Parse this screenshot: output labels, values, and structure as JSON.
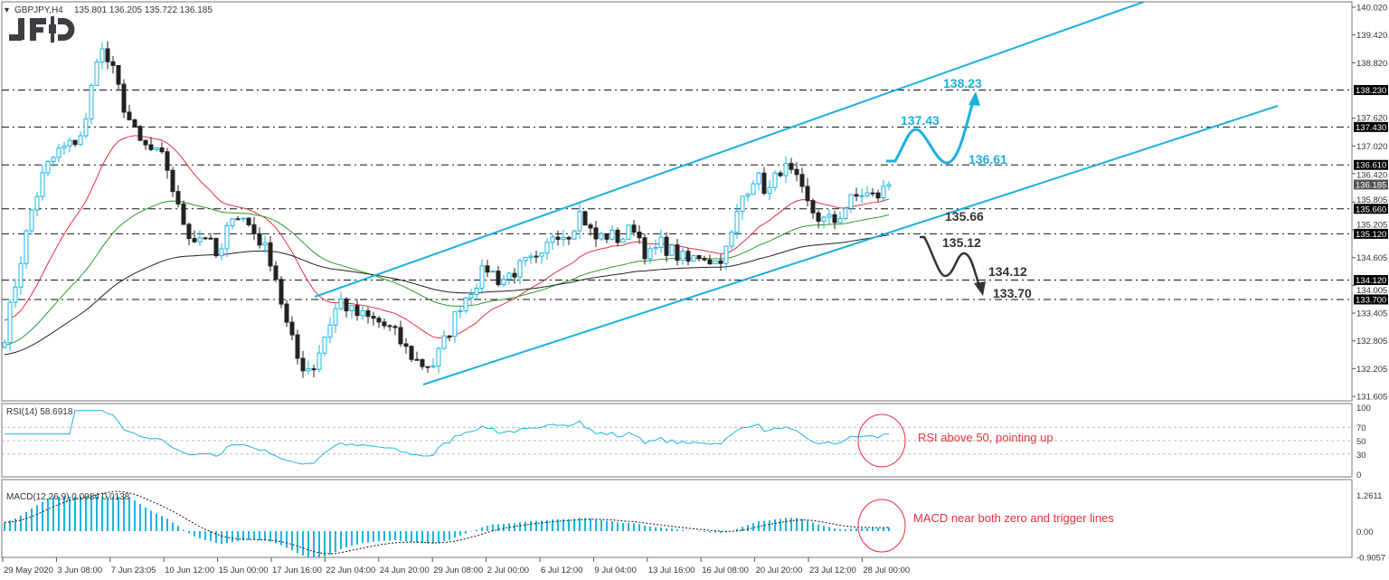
{
  "header": {
    "symbol": "GBPJPY,H4",
    "ohlc": "135.801 136.205 135.722 136.185",
    "logo": "JFD"
  },
  "colors": {
    "bull": "#1bb5e0",
    "bear": "#222222",
    "channel": "#1bb0e0",
    "ma_fast": "#e8303a",
    "ma_mid": "#2e9a2e",
    "ma_slow": "#222222",
    "note": "#e8303a",
    "level_line": "#111111"
  },
  "chart_data": [
    {
      "type": "candlestick",
      "panel": "price",
      "ylim": [
        131.605,
        140.02
      ],
      "y_ticks": [
        "140.020",
        "139.420",
        "138.820",
        "137.620",
        "137.020",
        "136.420",
        "135.805",
        "135.205",
        "134.605",
        "134.005",
        "133.405",
        "132.805",
        "132.205",
        "131.605"
      ],
      "x_ticks": [
        "29 May 2020",
        "3 Jun 08:00",
        "7 Jun 23:05",
        "10 Jun 12:00",
        "15 Jun 00:00",
        "17 Jun 16:00",
        "22 Jun 04:00",
        "24 Jun 20:00",
        "29 Jun 08:00",
        "2 Jul 00:00",
        "6 Jul 12:00",
        "9 Jul 04:00",
        "13 Jul 16:00",
        "16 Jul 08:00",
        "20 Jul 20:00",
        "23 Jul 12:00",
        "28 Jul 00:00"
      ],
      "approx_close_path": [
        132.94,
        134.3,
        135.6,
        136.5,
        136.9,
        137.05,
        137.4,
        139.2,
        138.7,
        137.8,
        137.1,
        136.9,
        136.7,
        135.6,
        135.0,
        135.1,
        134.5,
        135.6,
        135.4,
        135.0,
        134.5,
        133.2,
        132.3,
        132.2,
        133.0,
        133.7,
        133.4,
        133.3,
        133.2,
        133.0,
        132.6,
        132.3,
        132.3,
        132.9,
        133.6,
        134.0,
        134.4,
        134.1,
        134.3,
        134.5,
        134.5,
        135.2,
        135.1,
        135.6,
        135.0,
        135.1,
        135.0,
        135.3,
        134.6,
        134.9,
        134.7,
        134.5,
        134.7,
        134.5,
        134.8,
        135.9,
        136.4,
        136.0,
        136.6,
        136.3,
        135.7,
        135.4,
        135.4,
        135.8,
        136.0,
        135.9,
        136.185
      ],
      "current_price": "136.185",
      "levels": [
        "138.230",
        "137.430",
        "136.610",
        "135.660",
        "135.120",
        "134.120",
        "133.700"
      ],
      "annotations": {
        "bull_targets": [
          "138.23",
          "137.43",
          "136.61"
        ],
        "bear_targets": [
          "135.66",
          "135.12",
          "134.12",
          "133.70"
        ]
      }
    },
    {
      "type": "line",
      "panel": "rsi",
      "label": "RSI(14) 58.6918",
      "ylim": [
        0,
        100
      ],
      "y_ticks": [
        "100",
        "70",
        "50",
        "30",
        "0"
      ],
      "note": "RSI above 50, pointing up"
    },
    {
      "type": "bar",
      "panel": "macd",
      "label": "MACD(12,26,9) 0.0984 0.0138",
      "ylim": [
        -0.9057,
        1.2611
      ],
      "y_ticks": [
        "1.2611",
        "0.00",
        "-0.9057"
      ],
      "note": "MACD near both zero and trigger lines"
    }
  ]
}
